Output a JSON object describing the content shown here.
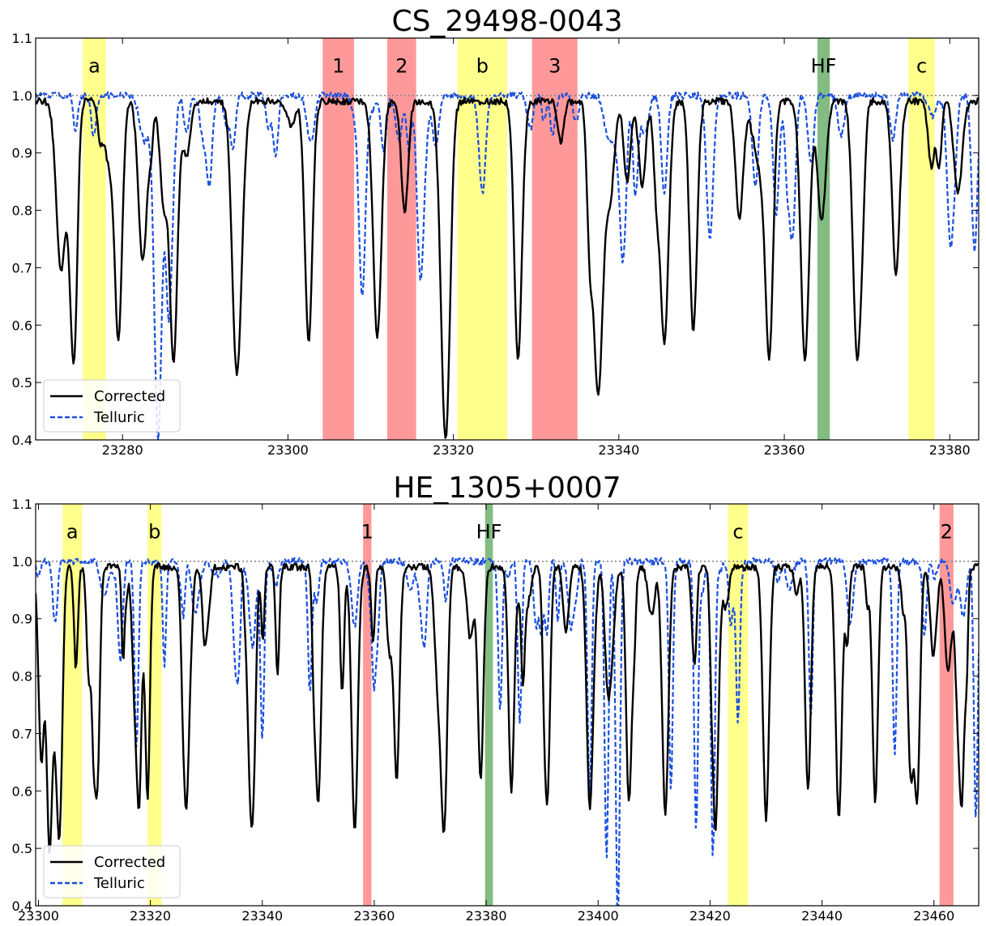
{
  "chart_data": [
    {
      "type": "line",
      "title": "CS_29498-0043",
      "xlabel": "",
      "ylabel": "",
      "xlim": [
        23269.5,
        23383.5
      ],
      "ylim": [
        0.4,
        1.1
      ],
      "xticks": [
        23280,
        23300,
        23320,
        23340,
        23360,
        23380
      ],
      "yticks": [
        0.4,
        0.5,
        0.6,
        0.7,
        0.8,
        0.9,
        1.0,
        1.1
      ],
      "reference_line": {
        "y": 1.0,
        "style": "dotted",
        "color": "#888888"
      },
      "legend_position": "lower-left",
      "bands": [
        {
          "label": "a",
          "x0": 23275.2,
          "x1": 23278.0,
          "color": "#ffff66"
        },
        {
          "label": "1",
          "x0": 23304.2,
          "x1": 23308.0,
          "color": "#ff7777"
        },
        {
          "label": "2",
          "x0": 23312.0,
          "x1": 23315.5,
          "color": "#ff7777"
        },
        {
          "label": "b",
          "x0": 23320.5,
          "x1": 23326.5,
          "color": "#ffff66"
        },
        {
          "label": "3",
          "x0": 23329.5,
          "x1": 23335.0,
          "color": "#ff7777"
        },
        {
          "label": "HF",
          "x0": 23364.0,
          "x1": 23365.5,
          "color": "#5aa55a"
        },
        {
          "label": "c",
          "x0": 23375.0,
          "x1": 23378.2,
          "color": "#ffff66"
        }
      ],
      "series": [
        {
          "name": "Corrected",
          "color": "#000000",
          "style": "solid",
          "baseline": 0.99,
          "lines": [
            [
              23272.5,
              0.74,
              0.55
            ],
            [
              23274.0,
              0.59,
              0.45
            ],
            [
              23279.5,
              0.58,
              0.45
            ],
            [
              23282.5,
              0.73,
              0.5
            ],
            [
              23286.2,
              0.58,
              0.45
            ],
            [
              23293.8,
              0.58,
              0.55
            ],
            [
              23302.5,
              0.57,
              0.45
            ],
            [
              23310.8,
              0.58,
              0.5
            ],
            [
              23319.0,
              0.49,
              0.55
            ],
            [
              23327.8,
              0.55,
              0.45
            ],
            [
              23337.5,
              0.48,
              0.6
            ],
            [
              23345.5,
              0.57,
              0.5
            ],
            [
              23349.0,
              0.59,
              0.45
            ],
            [
              23358.2,
              0.58,
              0.45
            ],
            [
              23362.5,
              0.54,
              0.5
            ],
            [
              23368.8,
              0.55,
              0.5
            ],
            [
              23373.5,
              0.69,
              0.45
            ],
            [
              23381.0,
              0.83,
              0.5
            ]
          ]
        },
        {
          "name": "Telluric",
          "color": "#1a4fe0",
          "style": "dashed",
          "baseline": 1.0,
          "lines": [
            [
              23276.5,
              0.93,
              0.3
            ],
            [
              23284.3,
              0.4,
              0.45
            ],
            [
              23285.6,
              0.62,
              0.4
            ],
            [
              23290.5,
              0.85,
              0.35
            ],
            [
              23298.5,
              0.89,
              0.3
            ],
            [
              23309.0,
              0.73,
              0.35
            ],
            [
              23316.0,
              0.7,
              0.4
            ],
            [
              23323.5,
              0.83,
              0.4
            ],
            [
              23332.0,
              0.93,
              0.3
            ],
            [
              23340.5,
              0.72,
              0.4
            ],
            [
              23342.0,
              0.83,
              0.3
            ],
            [
              23345.5,
              0.83,
              0.35
            ],
            [
              23351.0,
              0.75,
              0.4
            ],
            [
              23356.5,
              0.84,
              0.35
            ],
            [
              23359.0,
              0.79,
              0.35
            ],
            [
              23361.0,
              0.76,
              0.35
            ],
            [
              23363.2,
              0.88,
              0.35
            ],
            [
              23380.0,
              0.8,
              0.35
            ],
            [
              23383.0,
              0.73,
              0.35
            ]
          ]
        }
      ]
    },
    {
      "type": "line",
      "title": "HE_1305+0007",
      "xlabel": "",
      "ylabel": "",
      "xlim": [
        23299.5,
        23468.0
      ],
      "ylim": [
        0.4,
        1.1
      ],
      "xticks": [
        23300,
        23320,
        23340,
        23360,
        23380,
        23400,
        23420,
        23440,
        23460
      ],
      "yticks": [
        0.4,
        0.5,
        0.6,
        0.7,
        0.8,
        0.9,
        1.0,
        1.1
      ],
      "reference_line": {
        "y": 1.0,
        "style": "dotted",
        "color": "#888888"
      },
      "legend_position": "lower-left",
      "bands": [
        {
          "label": "a",
          "x0": 23304.3,
          "x1": 23307.8,
          "color": "#ffff66"
        },
        {
          "label": "b",
          "x0": 23319.5,
          "x1": 23322.0,
          "color": "#ffff66"
        },
        {
          "label": "1",
          "x0": 23358.0,
          "x1": 23359.5,
          "color": "#ff7777"
        },
        {
          "label": "HF",
          "x0": 23379.8,
          "x1": 23381.2,
          "color": "#5aa55a"
        },
        {
          "label": "c",
          "x0": 23423.2,
          "x1": 23426.8,
          "color": "#ffff66"
        },
        {
          "label": "2",
          "x0": 23461.0,
          "x1": 23463.5,
          "color": "#ff7777"
        }
      ],
      "series": [
        {
          "name": "Corrected",
          "color": "#000000",
          "style": "solid",
          "baseline": 0.99,
          "lines": [
            [
              23300.5,
              0.66,
              0.5
            ],
            [
              23302.0,
              0.69,
              0.4
            ],
            [
              23303.8,
              0.59,
              0.5
            ],
            [
              23309.0,
              0.8,
              0.4
            ],
            [
              23310.5,
              0.62,
              0.45
            ],
            [
              23318.0,
              0.6,
              0.45
            ],
            [
              23319.5,
              0.6,
              0.4
            ],
            [
              23326.5,
              0.62,
              0.5
            ],
            [
              23338.0,
              0.58,
              0.6
            ],
            [
              23350.0,
              0.58,
              0.5
            ],
            [
              23356.5,
              0.53,
              0.55
            ],
            [
              23364.0,
              0.62,
              0.5
            ],
            [
              23372.5,
              0.55,
              0.55
            ],
            [
              23379.0,
              0.62,
              0.5
            ],
            [
              23384.5,
              0.6,
              0.5
            ],
            [
              23391.0,
              0.63,
              0.45
            ],
            [
              23398.5,
              0.58,
              0.55
            ],
            [
              23405.5,
              0.58,
              0.5
            ],
            [
              23412.0,
              0.56,
              0.55
            ],
            [
              23421.0,
              0.61,
              0.5
            ],
            [
              23430.0,
              0.55,
              0.55
            ],
            [
              23437.5,
              0.6,
              0.5
            ],
            [
              23443.0,
              0.55,
              0.55
            ],
            [
              23449.5,
              0.58,
              0.5
            ],
            [
              23457.0,
              0.6,
              0.5
            ],
            [
              23465.0,
              0.63,
              0.45
            ]
          ]
        },
        {
          "name": "Telluric",
          "color": "#1a4fe0",
          "style": "dashed",
          "baseline": 1.0,
          "lines": [
            [
              23317.5,
              0.69,
              0.35
            ],
            [
              23322.5,
              0.82,
              0.3
            ],
            [
              23340.0,
              0.69,
              0.35
            ],
            [
              23348.5,
              0.77,
              0.35
            ],
            [
              23360.0,
              0.81,
              0.35
            ],
            [
              23382.5,
              0.74,
              0.35
            ],
            [
              23386.0,
              0.72,
              0.35
            ],
            [
              23398.5,
              0.61,
              0.35
            ],
            [
              23401.5,
              0.48,
              0.35
            ],
            [
              23403.5,
              0.4,
              0.35
            ],
            [
              23413.0,
              0.6,
              0.35
            ],
            [
              23417.5,
              0.53,
              0.35
            ],
            [
              23420.5,
              0.48,
              0.35
            ],
            [
              23425.0,
              0.77,
              0.3
            ],
            [
              23438.0,
              0.73,
              0.35
            ],
            [
              23453.0,
              0.66,
              0.35
            ],
            [
              23467.5,
              0.55,
              0.35
            ]
          ]
        }
      ]
    }
  ]
}
